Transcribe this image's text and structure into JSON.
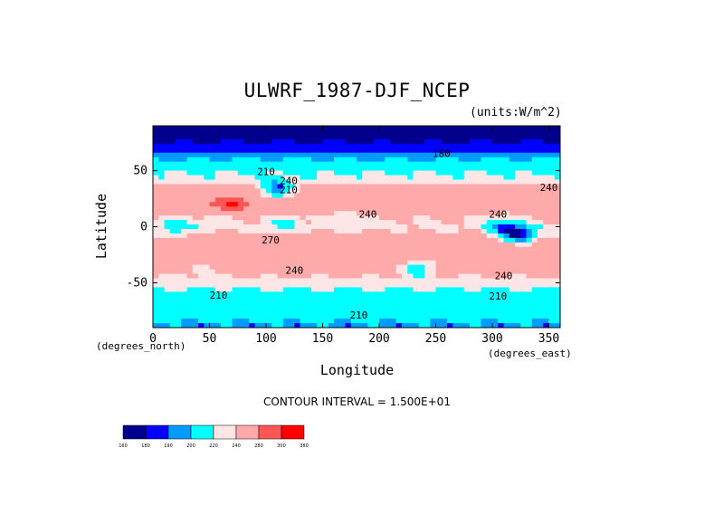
{
  "chart_data": {
    "type": "heatmap",
    "title": "ULWRF_1987-DJF_NCEP",
    "units_note": "(units:W/m^2)",
    "xlabel": "Longitude",
    "ylabel": "Latitude",
    "x_units_note": "(degrees_north)",
    "y_units_note": "(degrees_east)",
    "xlim": [
      0,
      360
    ],
    "ylim": [
      -90,
      90
    ],
    "x_ticks": [
      0,
      50,
      100,
      150,
      200,
      250,
      300,
      350
    ],
    "y_ticks": [
      50,
      0,
      -50
    ],
    "contour_interval_text": "CONTOUR INTERVAL = 1.500E+01",
    "colorbar": {
      "levels": [
        "160",
        "180",
        "190",
        "200",
        "220",
        "240",
        "280",
        "300",
        "380"
      ],
      "colors": [
        "#00008c",
        "#0000ff",
        "#009bff",
        "#00ffff",
        "#ffe6e6",
        "#ffaaaa",
        "#ff5555",
        "#ff0000"
      ]
    },
    "contour_labels": [
      {
        "text": "210",
        "lon": 100,
        "lat": 46
      },
      {
        "text": "210",
        "lon": 120,
        "lat": 30
      },
      {
        "text": "240",
        "lon": 120,
        "lat": 38
      },
      {
        "text": "240",
        "lon": 190,
        "lat": 8
      },
      {
        "text": "240",
        "lon": 305,
        "lat": 8
      },
      {
        "text": "240",
        "lon": 350,
        "lat": 32
      },
      {
        "text": "270",
        "lon": 104,
        "lat": -15
      },
      {
        "text": "240",
        "lon": 125,
        "lat": -42
      },
      {
        "text": "240",
        "lon": 310,
        "lat": -47
      },
      {
        "text": "210",
        "lon": 58,
        "lat": -64
      },
      {
        "text": "210",
        "lon": 305,
        "lat": -65
      },
      {
        "text": "210",
        "lon": 182,
        "lat": -82
      },
      {
        "text": "180",
        "lon": 255,
        "lat": 62
      }
    ],
    "zonal_bands": [
      {
        "lat": 90,
        "value": 170
      },
      {
        "lat": 80,
        "value": 175
      },
      {
        "lat": 70,
        "value": 185
      },
      {
        "lat": 60,
        "value": 200
      },
      {
        "lat": 50,
        "value": 215
      },
      {
        "lat": 40,
        "value": 232
      },
      {
        "lat": 30,
        "value": 265
      },
      {
        "lat": 20,
        "value": 272
      },
      {
        "lat": 10,
        "value": 245
      },
      {
        "lat": 0,
        "value": 235
      },
      {
        "lat": -10,
        "value": 250
      },
      {
        "lat": -20,
        "value": 272
      },
      {
        "lat": -30,
        "value": 270
      },
      {
        "lat": -40,
        "value": 250
      },
      {
        "lat": -50,
        "value": 230
      },
      {
        "lat": -60,
        "value": 212
      },
      {
        "lat": -70,
        "value": 205
      },
      {
        "lat": -80,
        "value": 210
      },
      {
        "lat": -90,
        "value": 192
      }
    ],
    "anomalies": [
      {
        "lon": 20,
        "lat": 0,
        "value": 200
      },
      {
        "lon": 60,
        "lat": 8,
        "value": 228
      },
      {
        "lon": 70,
        "lat": 18,
        "value": 300
      },
      {
        "lon": 115,
        "lat": 3,
        "value": 215
      },
      {
        "lon": 165,
        "lat": 8,
        "value": 225
      },
      {
        "lon": 310,
        "lat": 0,
        "value": 195
      },
      {
        "lon": 325,
        "lat": -8,
        "value": 185
      },
      {
        "lon": 40,
        "lat": -35,
        "value": 240
      },
      {
        "lon": 235,
        "lat": -35,
        "value": 210
      },
      {
        "lon": 110,
        "lat": 32,
        "value": 195
      }
    ]
  }
}
